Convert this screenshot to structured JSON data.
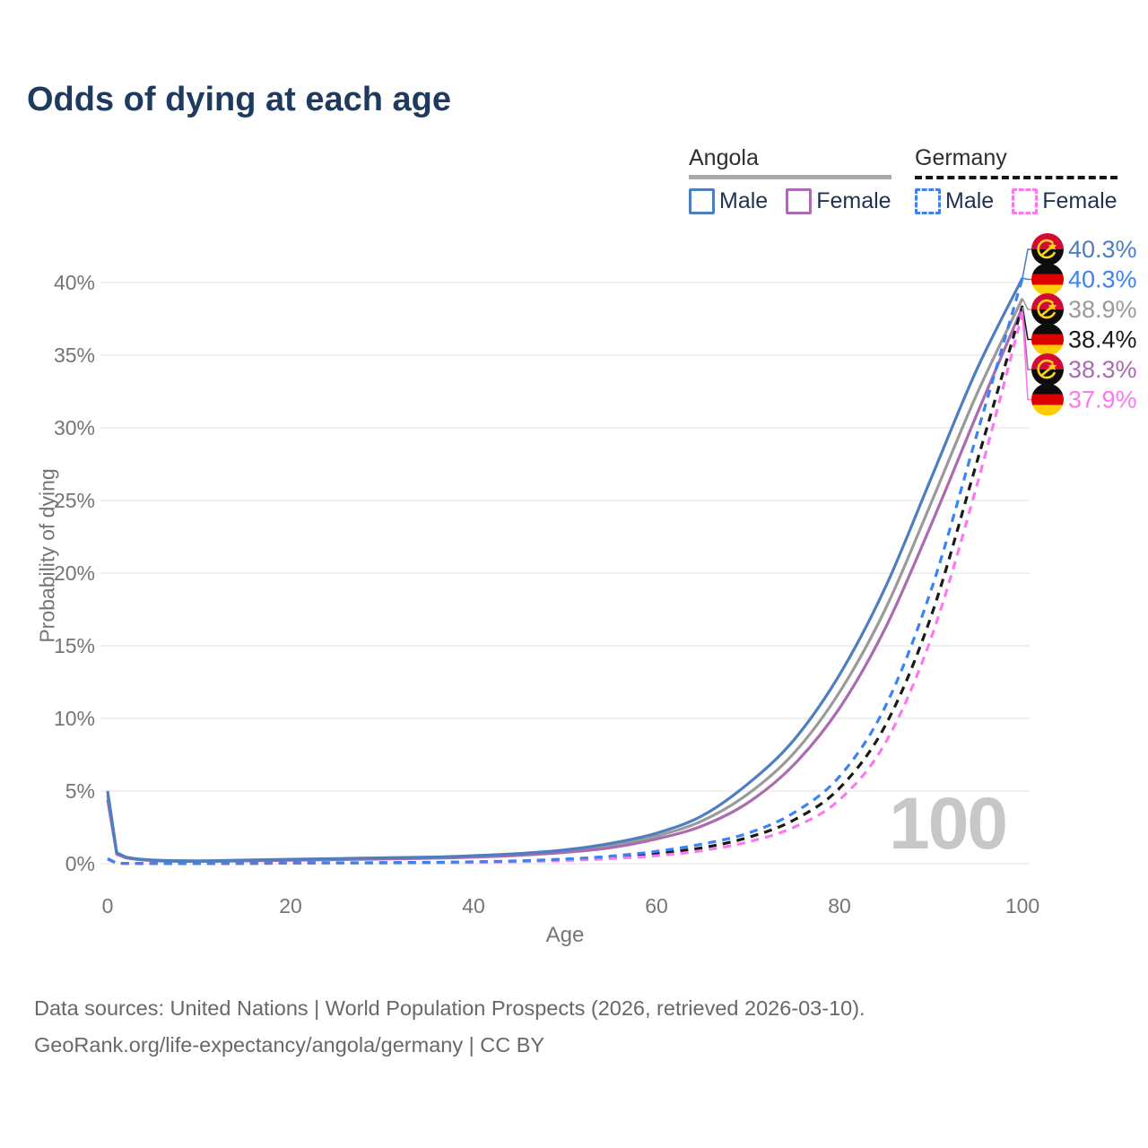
{
  "title": "Odds of dying at each age",
  "colors": {
    "title_text": "#1e3a5f",
    "axis_text": "#757575",
    "gridline": "#ebebeb",
    "watermark": "#c7c7c7",
    "footer_text": "#686868",
    "angola_male": "#4d7ebf",
    "angola_both": "#9a9a9a",
    "angola_female": "#ab6bb0",
    "germany_male": "#3b82f6",
    "germany_both": "#1a1a1a",
    "germany_female": "#ff77f0",
    "angola_flag_red": "#d40a35",
    "angola_flag_black": "#0d0d0d",
    "angola_flag_yellow": "#ffd215",
    "germany_flag_black": "#0d0d0d",
    "germany_flag_red": "#dd0000",
    "germany_flag_gold": "#ffce00"
  },
  "legend": {
    "groups": [
      {
        "key": "angola",
        "label": "Angola",
        "underline": {
          "style": "solid",
          "color": "#a8a8a8"
        },
        "items": [
          {
            "key": "male",
            "label": "Male",
            "color": "#4d7ebf",
            "dashed": false
          },
          {
            "key": "female",
            "label": "Female",
            "color": "#ab6bb0",
            "dashed": false
          }
        ]
      },
      {
        "key": "germany",
        "label": "Germany",
        "underline": {
          "style": "dashed",
          "color": "#151515"
        },
        "items": [
          {
            "key": "male",
            "label": "Male",
            "color": "#3b82f6",
            "dashed": true
          },
          {
            "key": "female",
            "label": "Female",
            "color": "#ff77f0",
            "dashed": true
          }
        ]
      }
    ]
  },
  "watermark": "100",
  "footer": {
    "line1": "Data sources: United Nations | World Population Prospects (2026, retrieved 2026-03-10).",
    "line2": "GeoRank.org/life-expectancy/angola/germany | CC BY"
  },
  "chart_data": {
    "type": "line",
    "xlabel": "Age",
    "ylabel": "Probability of dying",
    "xlim": [
      0,
      100
    ],
    "ylim_percent": [
      0,
      42
    ],
    "grid": "horizontal",
    "x_ticks": [
      0,
      20,
      40,
      60,
      80,
      100
    ],
    "y_ticks": [
      {
        "value": 0,
        "label": "0%"
      },
      {
        "value": 5,
        "label": "5%"
      },
      {
        "value": 10,
        "label": "10%"
      },
      {
        "value": 15,
        "label": "15%"
      },
      {
        "value": 20,
        "label": "20%"
      },
      {
        "value": 25,
        "label": "25%"
      },
      {
        "value": 30,
        "label": "30%"
      },
      {
        "value": 35,
        "label": "35%"
      },
      {
        "value": 40,
        "label": "40%"
      }
    ],
    "ages": [
      0,
      1,
      2,
      5,
      10,
      15,
      20,
      25,
      30,
      35,
      40,
      45,
      50,
      55,
      60,
      65,
      70,
      75,
      80,
      85,
      90,
      95,
      100
    ],
    "series": [
      {
        "key": "angola_both",
        "name": "Angola Both sexes",
        "color": "#9a9a9a",
        "dashed": false,
        "values": [
          4.7,
          0.7,
          0.42,
          0.23,
          0.18,
          0.22,
          0.27,
          0.31,
          0.36,
          0.41,
          0.5,
          0.64,
          0.86,
          1.25,
          1.9,
          2.95,
          4.8,
          7.6,
          11.8,
          17.5,
          24.8,
          32.3,
          38.9
        ]
      },
      {
        "key": "angola_female",
        "name": "Angola Female",
        "color": "#ab6bb0",
        "dashed": false,
        "values": [
          4.4,
          0.65,
          0.4,
          0.21,
          0.16,
          0.19,
          0.24,
          0.28,
          0.32,
          0.37,
          0.45,
          0.58,
          0.78,
          1.1,
          1.7,
          2.6,
          4.2,
          6.8,
          10.7,
          16.2,
          23.3,
          30.9,
          38.3
        ]
      },
      {
        "key": "angola_male",
        "name": "Angola Male",
        "color": "#4d7ebf",
        "dashed": false,
        "values": [
          5.0,
          0.75,
          0.45,
          0.25,
          0.2,
          0.25,
          0.3,
          0.35,
          0.4,
          0.45,
          0.55,
          0.7,
          0.95,
          1.4,
          2.1,
          3.3,
          5.5,
          8.5,
          13.0,
          19.0,
          26.5,
          34.0,
          40.3
        ]
      },
      {
        "key": "germany_both",
        "name": "Germany Both sexes",
        "color": "#1a1a1a",
        "dashed": true,
        "values": [
          0.33,
          0.03,
          0.02,
          0.01,
          0.01,
          0.02,
          0.04,
          0.05,
          0.06,
          0.08,
          0.11,
          0.17,
          0.27,
          0.43,
          0.7,
          1.1,
          1.8,
          3.0,
          5.2,
          9.5,
          17.0,
          27.6,
          38.4
        ]
      },
      {
        "key": "germany_female",
        "name": "Germany Female",
        "color": "#ff77f0",
        "dashed": true,
        "values": [
          0.3,
          0.02,
          0.01,
          0.01,
          0.01,
          0.02,
          0.03,
          0.04,
          0.05,
          0.06,
          0.09,
          0.14,
          0.22,
          0.35,
          0.55,
          0.9,
          1.5,
          2.5,
          4.4,
          8.3,
          15.5,
          26.0,
          37.9
        ]
      },
      {
        "key": "germany_male",
        "name": "Germany Male",
        "color": "#3b82f6",
        "dashed": true,
        "values": [
          0.35,
          0.03,
          0.02,
          0.01,
          0.01,
          0.03,
          0.05,
          0.06,
          0.07,
          0.09,
          0.13,
          0.2,
          0.32,
          0.52,
          0.85,
          1.35,
          2.1,
          3.5,
          6.0,
          10.8,
          18.8,
          29.5,
          40.3
        ]
      }
    ],
    "end_labels": [
      {
        "flag": "angola",
        "series": "angola_male",
        "text": "40.3%",
        "color": "#4d7ebf"
      },
      {
        "flag": "germany",
        "series": "germany_male",
        "text": "40.3%",
        "color": "#3b82f6"
      },
      {
        "flag": "angola",
        "series": "angola_both",
        "text": "38.9%",
        "color": "#9a9a9a"
      },
      {
        "flag": "germany",
        "series": "germany_both",
        "text": "38.4%",
        "color": "#1a1a1a"
      },
      {
        "flag": "angola",
        "series": "angola_female",
        "text": "38.3%",
        "color": "#ab6bb0"
      },
      {
        "flag": "germany",
        "series": "germany_female",
        "text": "37.9%",
        "color": "#ff77f0"
      }
    ]
  }
}
